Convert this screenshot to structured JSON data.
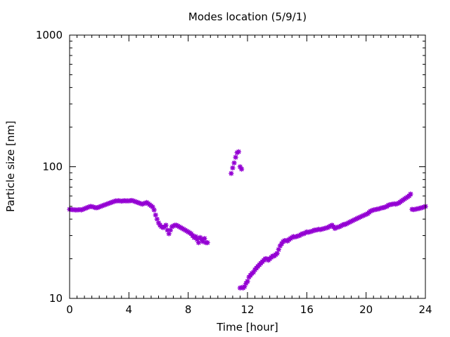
{
  "chart_data": {
    "type": "scatter",
    "title": "Modes location (5/9/1)",
    "xlabel": "Time [hour]",
    "ylabel": "Particle size [nm]",
    "xlim": [
      0,
      24
    ],
    "ylim": [
      10,
      1000
    ],
    "yscale": "log",
    "grid": false,
    "legend": "none",
    "marker": "asterisk",
    "color": "#9400d3",
    "xticks": [
      0,
      4,
      8,
      12,
      16,
      20,
      24
    ],
    "xtick_labels": [
      "0",
      "4",
      "8",
      "12",
      "16",
      "20",
      "24"
    ],
    "yticks": [
      10,
      100,
      1000
    ],
    "ytick_labels": [
      "10",
      "100",
      "1000"
    ],
    "series": [
      {
        "x": [
          0.0,
          0.1,
          0.2,
          0.3,
          0.4,
          0.5,
          0.6,
          0.7,
          0.8,
          0.9,
          1.0,
          1.1,
          1.2,
          1.3,
          1.4,
          1.5,
          1.6,
          1.7,
          1.8,
          1.9,
          2.0,
          2.1,
          2.2,
          2.3,
          2.4,
          2.5,
          2.6,
          2.7,
          2.8,
          2.9,
          3.0,
          3.1,
          3.2,
          3.3,
          3.4,
          3.5,
          3.6,
          3.7,
          3.8,
          3.9,
          4.0,
          4.1,
          4.2,
          4.3,
          4.4,
          4.5,
          4.6,
          4.7,
          4.8,
          4.9,
          5.0,
          5.1,
          5.2,
          5.3,
          5.4,
          5.5,
          5.6,
          5.7,
          5.8,
          5.9,
          6.0,
          6.1,
          6.2,
          6.3,
          6.4,
          6.5,
          6.6,
          6.7,
          6.8,
          6.9,
          7.0,
          7.1,
          7.2,
          7.3,
          7.4,
          7.5,
          7.6,
          7.7,
          7.8,
          7.9,
          8.0,
          8.1,
          8.2,
          8.3,
          8.4,
          8.5,
          8.6,
          8.7,
          8.8,
          8.9,
          9.0,
          9.1,
          9.2,
          9.3
        ],
        "y": [
          47.5,
          47.3,
          47.2,
          47.1,
          47.0,
          47.0,
          47.1,
          47.2,
          47.0,
          47.5,
          48.0,
          48.5,
          49.0,
          49.5,
          50.0,
          49.8,
          49.5,
          49.0,
          48.8,
          49.0,
          49.5,
          50.0,
          50.5,
          51.0,
          51.5,
          52.0,
          52.5,
          53.0,
          53.5,
          54.0,
          54.5,
          55.0,
          55.0,
          55.2,
          55.0,
          54.8,
          55.0,
          55.2,
          55.0,
          55.1,
          55.0,
          55.3,
          55.5,
          55.0,
          54.5,
          54.0,
          53.5,
          53.0,
          52.5,
          52.0,
          52.5,
          53.0,
          53.5,
          52.5,
          51.5,
          50.5,
          49.5,
          47.0,
          43.0,
          40.0,
          37.5,
          36.0,
          35.0,
          34.5,
          35.0,
          36.0,
          33.0,
          31.0,
          33.0,
          35.0,
          35.5,
          36.0,
          36.0,
          35.5,
          35.0,
          34.5,
          34.0,
          33.5,
          33.0,
          32.5,
          32.0,
          31.5,
          31.0,
          30.0,
          29.0,
          29.5,
          28.0,
          26.5,
          29.0,
          28.0,
          27.0,
          28.5,
          26.5,
          26.5
        ]
      },
      {
        "x": [
          10.9,
          11.0,
          11.1,
          11.2,
          11.3,
          11.4,
          11.5,
          11.6
        ],
        "y": [
          89,
          98,
          107,
          118,
          128,
          130,
          100,
          96
        ]
      },
      {
        "x": [
          11.5,
          11.6,
          11.7,
          11.8,
          11.9,
          12.0,
          12.1,
          12.2,
          12.3,
          12.4,
          12.5,
          12.6,
          12.7,
          12.8,
          12.9,
          13.0,
          13.1,
          13.2,
          13.3,
          13.4,
          13.5,
          13.6,
          13.7,
          13.8,
          13.9,
          14.0,
          14.1,
          14.2,
          14.3,
          14.4,
          14.5,
          14.6,
          14.7,
          14.8,
          14.9,
          15.0,
          15.1,
          15.2,
          15.3,
          15.4,
          15.5,
          15.6,
          15.7,
          15.8,
          15.9,
          16.0,
          16.1,
          16.2,
          16.3,
          16.4,
          16.5,
          16.6,
          16.7,
          16.8,
          16.9,
          17.0,
          17.1,
          17.2,
          17.3,
          17.4,
          17.5,
          17.6,
          17.7,
          17.8,
          17.9,
          18.0,
          18.1,
          18.2,
          18.3,
          18.4,
          18.5,
          18.6,
          18.7,
          18.8,
          18.9,
          19.0,
          19.1,
          19.2,
          19.3,
          19.4,
          19.5,
          19.6,
          19.7,
          19.8,
          19.9,
          20.0,
          20.1,
          20.2,
          20.3,
          20.4,
          20.5,
          20.6,
          20.7,
          20.8,
          20.9,
          21.0,
          21.1,
          21.2,
          21.3,
          21.4,
          21.5,
          21.6,
          21.7,
          21.8,
          21.9,
          22.0,
          22.1,
          22.2,
          22.3,
          22.4,
          22.5,
          22.6,
          22.7,
          22.8,
          22.9,
          23.0,
          23.1,
          23.2,
          23.3,
          23.4,
          23.5,
          23.6,
          23.7,
          23.8,
          23.9,
          24.0
        ],
        "y": [
          12.0,
          12.1,
          12.0,
          12.3,
          13.0,
          13.5,
          14.5,
          15.0,
          15.5,
          15.8,
          16.5,
          17.0,
          17.5,
          18.0,
          18.5,
          19.0,
          19.5,
          20.0,
          20.0,
          19.5,
          20.0,
          20.5,
          21.0,
          21.0,
          21.5,
          22.0,
          23.5,
          25.0,
          26.0,
          27.0,
          27.5,
          27.5,
          27.3,
          28.0,
          28.5,
          29.0,
          29.5,
          29.3,
          29.5,
          29.8,
          30.0,
          30.5,
          31.0,
          31.0,
          31.5,
          32.0,
          31.8,
          32.0,
          32.3,
          32.5,
          33.0,
          33.0,
          33.2,
          33.5,
          33.3,
          33.5,
          33.8,
          34.0,
          34.3,
          34.5,
          35.0,
          35.5,
          36.0,
          35.0,
          34.0,
          34.5,
          34.8,
          35.0,
          35.5,
          36.0,
          36.5,
          36.5,
          37.0,
          37.5,
          38.0,
          38.5,
          39.0,
          39.5,
          40.0,
          40.5,
          41.0,
          41.5,
          42.0,
          42.5,
          43.0,
          43.5,
          44.0,
          45.0,
          46.0,
          46.5,
          47.0,
          47.2,
          47.5,
          47.7,
          48.0,
          48.5,
          48.8,
          49.0,
          49.5,
          50.0,
          51.0,
          51.5,
          51.8,
          52.0,
          52.3,
          52.0,
          52.5,
          53.0,
          54.0,
          55.0,
          56.0,
          57.0,
          58.0,
          59.0,
          60.0,
          62.0,
          47.5,
          47.3,
          47.5,
          47.8,
          48.0,
          48.3,
          48.7,
          49.0,
          49.5,
          50.0
        ]
      }
    ]
  }
}
